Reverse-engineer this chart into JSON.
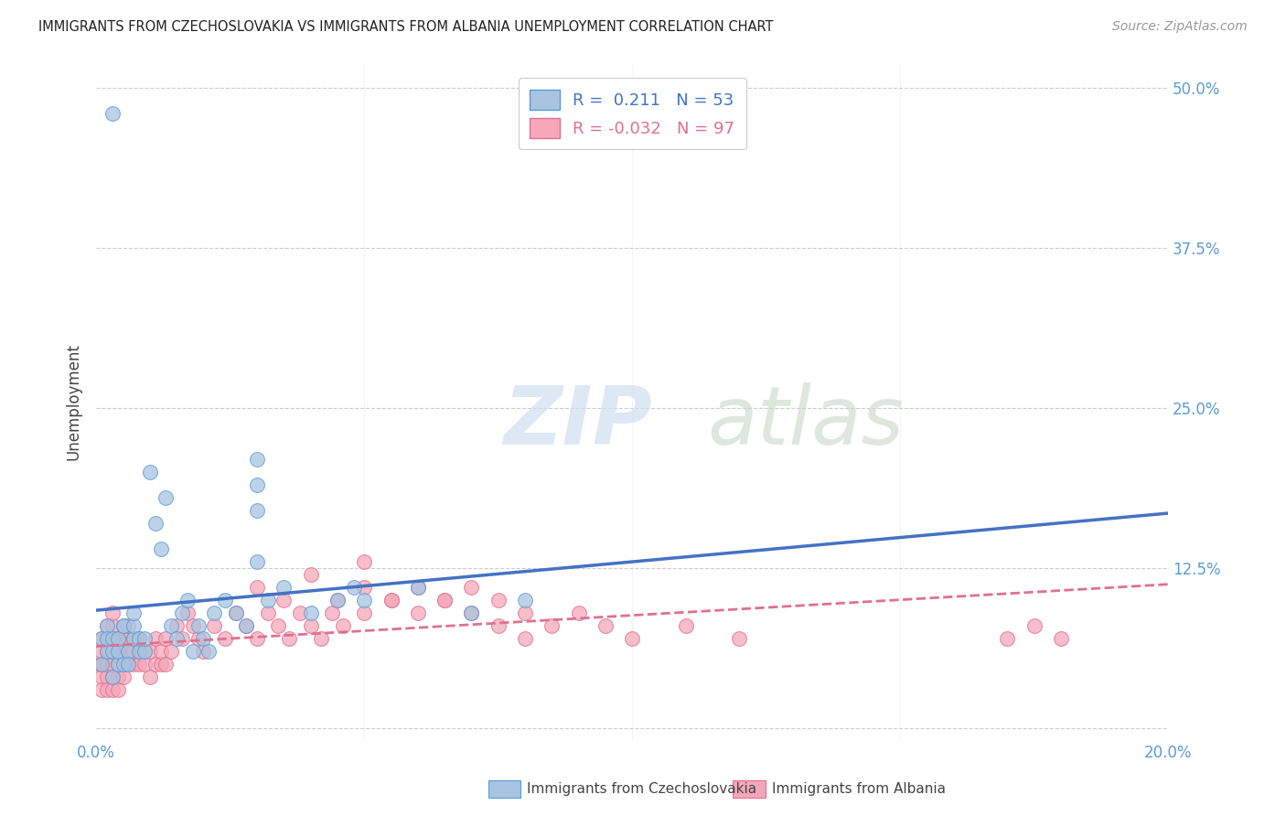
{
  "title": "IMMIGRANTS FROM CZECHOSLOVAKIA VS IMMIGRANTS FROM ALBANIA UNEMPLOYMENT CORRELATION CHART",
  "source": "Source: ZipAtlas.com",
  "ylabel": "Unemployment",
  "xlim": [
    0.0,
    0.2
  ],
  "ylim": [
    -0.01,
    0.52
  ],
  "ytick_positions": [
    0.0,
    0.125,
    0.25,
    0.375,
    0.5
  ],
  "ytick_labels": [
    "",
    "12.5%",
    "25.0%",
    "37.5%",
    "50.0%"
  ],
  "xtick_positions": [
    0.0,
    0.05,
    0.1,
    0.15,
    0.2
  ],
  "xtick_labels": [
    "0.0%",
    "",
    "",
    "",
    "20.0%"
  ],
  "r_czech": 0.211,
  "n_czech": 53,
  "r_albania": -0.032,
  "n_albania": 97,
  "legend_label_czech": "Immigrants from Czechoslovakia",
  "legend_label_albania": "Immigrants from Albania",
  "color_czech_fill": "#a8c4e0",
  "color_czech_edge": "#5b9bd5",
  "color_albania_fill": "#f4a7b9",
  "color_albania_edge": "#e07090",
  "trend_color_czech": "#4472c4",
  "trend_color_albania": "#e07090",
  "watermark_zip": "ZIP",
  "watermark_atlas": "atlas",
  "background_color": "#ffffff",
  "czech_x": [
    0.003,
    0.001,
    0.002,
    0.001,
    0.002,
    0.003,
    0.002,
    0.003,
    0.004,
    0.003,
    0.004,
    0.005,
    0.005,
    0.004,
    0.006,
    0.005,
    0.007,
    0.006,
    0.007,
    0.008,
    0.008,
    0.007,
    0.009,
    0.009,
    0.01,
    0.011,
    0.012,
    0.013,
    0.014,
    0.015,
    0.016,
    0.017,
    0.018,
    0.019,
    0.02,
    0.021,
    0.022,
    0.024,
    0.026,
    0.028,
    0.03,
    0.035,
    0.04,
    0.045,
    0.05,
    0.06,
    0.07,
    0.08,
    0.03,
    0.03,
    0.03,
    0.032,
    0.048
  ],
  "czech_y": [
    0.48,
    0.05,
    0.06,
    0.07,
    0.08,
    0.04,
    0.07,
    0.06,
    0.05,
    0.07,
    0.06,
    0.08,
    0.05,
    0.07,
    0.06,
    0.08,
    0.07,
    0.05,
    0.08,
    0.06,
    0.07,
    0.09,
    0.06,
    0.07,
    0.2,
    0.16,
    0.14,
    0.18,
    0.08,
    0.07,
    0.09,
    0.1,
    0.06,
    0.08,
    0.07,
    0.06,
    0.09,
    0.1,
    0.09,
    0.08,
    0.13,
    0.11,
    0.09,
    0.1,
    0.1,
    0.11,
    0.09,
    0.1,
    0.17,
    0.19,
    0.21,
    0.1,
    0.11
  ],
  "albania_x": [
    0.0005,
    0.001,
    0.001,
    0.001,
    0.001,
    0.001,
    0.002,
    0.002,
    0.002,
    0.002,
    0.002,
    0.002,
    0.003,
    0.003,
    0.003,
    0.003,
    0.003,
    0.003,
    0.003,
    0.004,
    0.004,
    0.004,
    0.004,
    0.004,
    0.005,
    0.005,
    0.005,
    0.005,
    0.005,
    0.006,
    0.006,
    0.006,
    0.006,
    0.007,
    0.007,
    0.007,
    0.008,
    0.008,
    0.008,
    0.009,
    0.009,
    0.01,
    0.01,
    0.011,
    0.011,
    0.012,
    0.012,
    0.013,
    0.013,
    0.014,
    0.015,
    0.016,
    0.017,
    0.018,
    0.019,
    0.02,
    0.022,
    0.024,
    0.026,
    0.028,
    0.03,
    0.032,
    0.034,
    0.036,
    0.038,
    0.04,
    0.042,
    0.044,
    0.046,
    0.05,
    0.055,
    0.06,
    0.065,
    0.07,
    0.075,
    0.08,
    0.03,
    0.035,
    0.04,
    0.045,
    0.05,
    0.055,
    0.06,
    0.065,
    0.07,
    0.075,
    0.08,
    0.085,
    0.09,
    0.095,
    0.1,
    0.11,
    0.12,
    0.17,
    0.175,
    0.18,
    0.05
  ],
  "albania_y": [
    0.05,
    0.04,
    0.05,
    0.06,
    0.07,
    0.03,
    0.04,
    0.05,
    0.06,
    0.07,
    0.03,
    0.08,
    0.04,
    0.05,
    0.06,
    0.07,
    0.03,
    0.08,
    0.09,
    0.04,
    0.05,
    0.06,
    0.07,
    0.03,
    0.04,
    0.05,
    0.06,
    0.07,
    0.08,
    0.05,
    0.06,
    0.07,
    0.08,
    0.05,
    0.06,
    0.07,
    0.05,
    0.06,
    0.07,
    0.05,
    0.06,
    0.04,
    0.06,
    0.05,
    0.07,
    0.05,
    0.06,
    0.05,
    0.07,
    0.06,
    0.08,
    0.07,
    0.09,
    0.08,
    0.07,
    0.06,
    0.08,
    0.07,
    0.09,
    0.08,
    0.07,
    0.09,
    0.08,
    0.07,
    0.09,
    0.08,
    0.07,
    0.09,
    0.08,
    0.09,
    0.1,
    0.09,
    0.1,
    0.09,
    0.08,
    0.07,
    0.11,
    0.1,
    0.12,
    0.1,
    0.11,
    0.1,
    0.11,
    0.1,
    0.11,
    0.1,
    0.09,
    0.08,
    0.09,
    0.08,
    0.07,
    0.08,
    0.07,
    0.07,
    0.08,
    0.07,
    0.13
  ]
}
